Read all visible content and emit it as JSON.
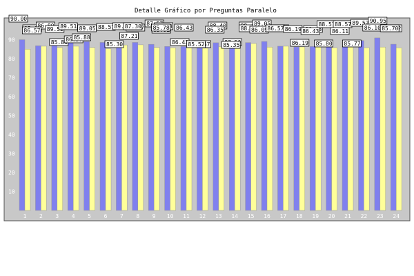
{
  "chart_data": {
    "type": "bar",
    "title": "Detalle Gráfico por Preguntas Paralelo",
    "categories": [
      "1",
      "2",
      "3",
      "4",
      "5",
      "6",
      "7",
      "8",
      "9",
      "10",
      "11",
      "12",
      "13",
      "14",
      "15",
      "16",
      "17",
      "18",
      "19",
      "20",
      "21",
      "22",
      "23",
      "24"
    ],
    "series": [
      {
        "color": "#8080ee",
        "values": [
          90.0,
          86.8,
          89.52,
          89.51,
          89.05,
          88.57,
          89.47,
          88.57,
          87.57,
          86.43,
          86.43,
          85.67,
          88.4,
          87.5,
          88.47,
          89.05,
          86.57,
          86.19,
          86.43,
          88.57,
          88.57,
          89.52,
          90.95,
          87.62
        ]
      },
      {
        "color": "#ffff99",
        "values": [
          85.0,
          86.57,
          85.86,
          86.57,
          85.88,
          85.3,
          87.21,
          87.3,
          85.92,
          85.78,
          86.43,
          85.52,
          86.35,
          85.35,
          88.0,
          86.09,
          86.57,
          86.19,
          86.43,
          85.8,
          86.11,
          85.77,
          86.1,
          85.7
        ]
      }
    ],
    "data_labels": [
      "90.00",
      "85.00",
      "86.80",
      "86.57",
      "89.52",
      "85.86",
      "89.51",
      "86.57",
      "89.05",
      "85.88",
      "88.57",
      "85.30",
      "89.47",
      "87.21",
      "88.57",
      "87.30",
      "87.57",
      "85.92",
      "86.43",
      "85.78",
      "86.43",
      "86.43",
      "85.67",
      "85.52",
      "88.40",
      "86.35",
      "87.50",
      "85.35",
      "88.47",
      "88.00",
      "89.05",
      "86.09",
      "86.57",
      "86.57",
      "86.19",
      "86.19",
      "86.43",
      "86.43",
      "88.57",
      "85.80",
      "88.57",
      "86.11",
      "89.52",
      "85.77",
      "90.95",
      "86.10",
      "87.62",
      "85.70"
    ],
    "y_ticks": [
      "10",
      "20",
      "30",
      "40",
      "50",
      "60",
      "70",
      "80",
      "90"
    ],
    "ylim": [
      0,
      100
    ],
    "grid": false,
    "legend": false
  }
}
